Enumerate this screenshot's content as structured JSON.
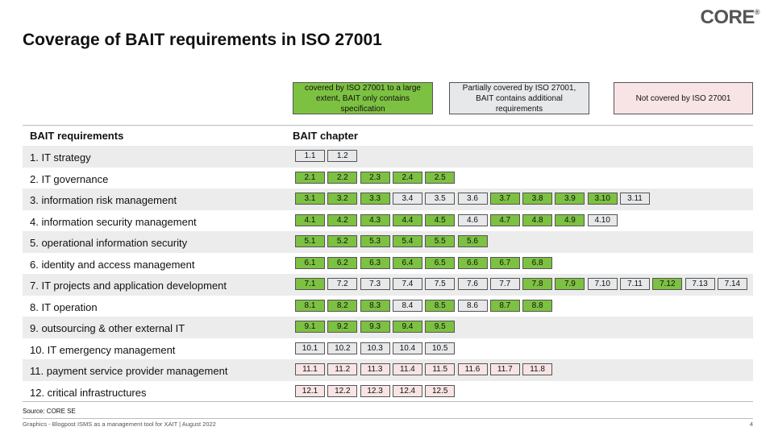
{
  "header": {
    "logo": "CORE",
    "logo_mark": "®",
    "title": "Coverage of BAIT requirements in ISO 27001"
  },
  "legend": [
    {
      "label": "covered by ISO 27001 to a large extent, BAIT only contains specification",
      "color": "#7dc142"
    },
    {
      "label": "Partially covered by ISO 27001, BAIT contains additional requirements",
      "color": "#e6e8ea"
    },
    {
      "label": "Not covered by ISO 27001",
      "color": "#f8e4e4"
    }
  ],
  "table": {
    "columns": [
      "BAIT requirements",
      "BAIT chapter"
    ],
    "rows": [
      {
        "label": "1. IT strategy",
        "chapters": [
          {
            "label": "1.1",
            "color": "#e6e8ea"
          },
          {
            "label": "1.2",
            "color": "#e6e8ea"
          }
        ]
      },
      {
        "label": "2. IT governance",
        "chapters": [
          {
            "label": "2.1",
            "color": "#7dc142"
          },
          {
            "label": "2.2",
            "color": "#7dc142"
          },
          {
            "label": "2.3",
            "color": "#7dc142"
          },
          {
            "label": "2.4",
            "color": "#7dc142"
          },
          {
            "label": "2.5",
            "color": "#7dc142"
          }
        ]
      },
      {
        "label": "3. information risk management",
        "chapters": [
          {
            "label": "3.1",
            "color": "#7dc142"
          },
          {
            "label": "3.2",
            "color": "#7dc142"
          },
          {
            "label": "3.3",
            "color": "#7dc142"
          },
          {
            "label": "3.4",
            "color": "#e6e8ea"
          },
          {
            "label": "3.5",
            "color": "#e6e8ea"
          },
          {
            "label": "3.6",
            "color": "#e6e8ea"
          },
          {
            "label": "3.7",
            "color": "#7dc142"
          },
          {
            "label": "3.8",
            "color": "#7dc142"
          },
          {
            "label": "3.9",
            "color": "#7dc142"
          },
          {
            "label": "3.10",
            "color": "#7dc142"
          },
          {
            "label": "3.11",
            "color": "#e6e8ea"
          }
        ]
      },
      {
        "label": "4. information security management",
        "chapters": [
          {
            "label": "4.1",
            "color": "#7dc142"
          },
          {
            "label": "4.2",
            "color": "#7dc142"
          },
          {
            "label": "4.3",
            "color": "#7dc142"
          },
          {
            "label": "4.4",
            "color": "#7dc142"
          },
          {
            "label": "4.5",
            "color": "#7dc142"
          },
          {
            "label": "4.6",
            "color": "#e6e8ea"
          },
          {
            "label": "4.7",
            "color": "#7dc142"
          },
          {
            "label": "4.8",
            "color": "#7dc142"
          },
          {
            "label": "4.9",
            "color": "#7dc142"
          },
          {
            "label": "4.10",
            "color": "#e6e8ea"
          }
        ]
      },
      {
        "label": "5. operational information security",
        "chapters": [
          {
            "label": "5.1",
            "color": "#7dc142"
          },
          {
            "label": "5.2",
            "color": "#7dc142"
          },
          {
            "label": "5.3",
            "color": "#7dc142"
          },
          {
            "label": "5.4",
            "color": "#7dc142"
          },
          {
            "label": "5.5",
            "color": "#7dc142"
          },
          {
            "label": "5.6",
            "color": "#7dc142"
          }
        ]
      },
      {
        "label": "6. identity and access management",
        "chapters": [
          {
            "label": "6.1",
            "color": "#7dc142"
          },
          {
            "label": "6.2",
            "color": "#7dc142"
          },
          {
            "label": "6.3",
            "color": "#7dc142"
          },
          {
            "label": "6.4",
            "color": "#7dc142"
          },
          {
            "label": "6.5",
            "color": "#7dc142"
          },
          {
            "label": "6.6",
            "color": "#7dc142"
          },
          {
            "label": "6.7",
            "color": "#7dc142"
          },
          {
            "label": "6.8",
            "color": "#7dc142"
          }
        ]
      },
      {
        "label": "7. IT projects and application development",
        "chapters": [
          {
            "label": "7.1",
            "color": "#7dc142"
          },
          {
            "label": "7.2",
            "color": "#e6e8ea"
          },
          {
            "label": "7.3",
            "color": "#e6e8ea"
          },
          {
            "label": "7.4",
            "color": "#e6e8ea"
          },
          {
            "label": "7.5",
            "color": "#e6e8ea"
          },
          {
            "label": "7.6",
            "color": "#e6e8ea"
          },
          {
            "label": "7.7",
            "color": "#e6e8ea"
          },
          {
            "label": "7.8",
            "color": "#7dc142"
          },
          {
            "label": "7.9",
            "color": "#7dc142"
          },
          {
            "label": "7.10",
            "color": "#e6e8ea"
          },
          {
            "label": "7.11",
            "color": "#e6e8ea"
          },
          {
            "label": "7.12",
            "color": "#7dc142"
          },
          {
            "label": "7.13",
            "color": "#e6e8ea"
          },
          {
            "label": "7.14",
            "color": "#e6e8ea"
          }
        ]
      },
      {
        "label": "8. IT operation",
        "chapters": [
          {
            "label": "8.1",
            "color": "#7dc142"
          },
          {
            "label": "8.2",
            "color": "#7dc142"
          },
          {
            "label": "8.3",
            "color": "#7dc142"
          },
          {
            "label": "8.4",
            "color": "#e6e8ea"
          },
          {
            "label": "8.5",
            "color": "#7dc142"
          },
          {
            "label": "8.6",
            "color": "#e6e8ea"
          },
          {
            "label": "8.7",
            "color": "#7dc142"
          },
          {
            "label": "8.8",
            "color": "#7dc142"
          }
        ]
      },
      {
        "label": "9. outsourcing & other external IT",
        "chapters": [
          {
            "label": "9.1",
            "color": "#7dc142"
          },
          {
            "label": "9.2",
            "color": "#7dc142"
          },
          {
            "label": "9.3",
            "color": "#7dc142"
          },
          {
            "label": "9.4",
            "color": "#7dc142"
          },
          {
            "label": "9.5",
            "color": "#7dc142"
          }
        ]
      },
      {
        "label": "10. IT emergency management",
        "chapters": [
          {
            "label": "10.1",
            "color": "#e6e8ea"
          },
          {
            "label": "10.2",
            "color": "#e6e8ea"
          },
          {
            "label": "10.3",
            "color": "#e6e8ea"
          },
          {
            "label": "10.4",
            "color": "#e6e8ea"
          },
          {
            "label": "10.5",
            "color": "#e6e8ea"
          }
        ]
      },
      {
        "label": "11. payment service provider management",
        "chapters": [
          {
            "label": "11.1",
            "color": "#f8e4e4"
          },
          {
            "label": "11.2",
            "color": "#f8e4e4"
          },
          {
            "label": "11.3",
            "color": "#f8e4e4"
          },
          {
            "label": "11.4",
            "color": "#f8e4e4"
          },
          {
            "label": "11.5",
            "color": "#f8e4e4"
          },
          {
            "label": "11.6",
            "color": "#f8e4e4"
          },
          {
            "label": "11.7",
            "color": "#f8e4e4"
          },
          {
            "label": "11.8",
            "color": "#f8e4e4"
          }
        ]
      },
      {
        "label": "12. critical infrastructures",
        "chapters": [
          {
            "label": "12.1",
            "color": "#f8e4e4"
          },
          {
            "label": "12.2",
            "color": "#f8e4e4"
          },
          {
            "label": "12.3",
            "color": "#f8e4e4"
          },
          {
            "label": "12.4",
            "color": "#f8e4e4"
          },
          {
            "label": "12.5",
            "color": "#f8e4e4"
          }
        ]
      }
    ]
  },
  "footer": {
    "source": "Source: CORE SE",
    "text": "Graphics - Blogpost ISMS as a management tool for XAIT | August 2022",
    "page": "4"
  }
}
